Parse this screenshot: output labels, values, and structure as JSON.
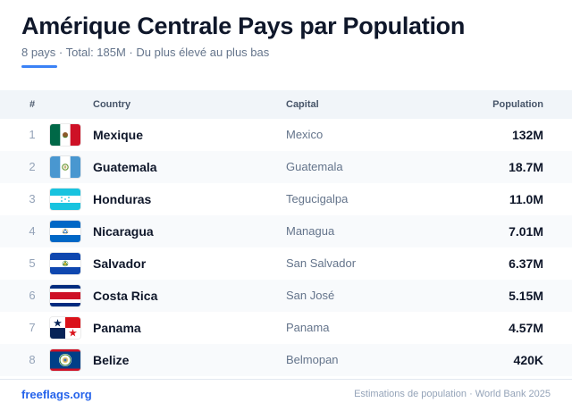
{
  "header": {
    "title": "Amérique Centrale Pays par Population",
    "subtitle": "8 pays · Total: 185M · Du plus élevé au plus bas",
    "accent_color": "#3b82f6"
  },
  "table": {
    "columns": {
      "num": "#",
      "country": "Country",
      "capital": "Capital",
      "population": "Population"
    },
    "rows": [
      {
        "rank": "1",
        "flag": "mexico-flag-icon",
        "country": "Mexique",
        "capital": "Mexico",
        "population": "132M"
      },
      {
        "rank": "2",
        "flag": "guatemala-flag-icon",
        "country": "Guatemala",
        "capital": "Guatemala",
        "population": "18.7M"
      },
      {
        "rank": "3",
        "flag": "honduras-flag-icon",
        "country": "Honduras",
        "capital": "Tegucigalpa",
        "population": "11.0M"
      },
      {
        "rank": "4",
        "flag": "nicaragua-flag-icon",
        "country": "Nicaragua",
        "capital": "Managua",
        "population": "7.01M"
      },
      {
        "rank": "5",
        "flag": "el-salvador-flag-icon",
        "country": "Salvador",
        "capital": "San Salvador",
        "population": "6.37M"
      },
      {
        "rank": "6",
        "flag": "costa-rica-flag-icon",
        "country": "Costa Rica",
        "capital": "San José",
        "population": "5.15M"
      },
      {
        "rank": "7",
        "flag": "panama-flag-icon",
        "country": "Panama",
        "capital": "Panama",
        "population": "4.57M"
      },
      {
        "rank": "8",
        "flag": "belize-flag-icon",
        "country": "Belize",
        "capital": "Belmopan",
        "population": "420K"
      }
    ]
  },
  "footer": {
    "brand": "freeflags.org",
    "source": "Estimations de population · World Bank 2025",
    "brand_color": "#2563eb"
  }
}
